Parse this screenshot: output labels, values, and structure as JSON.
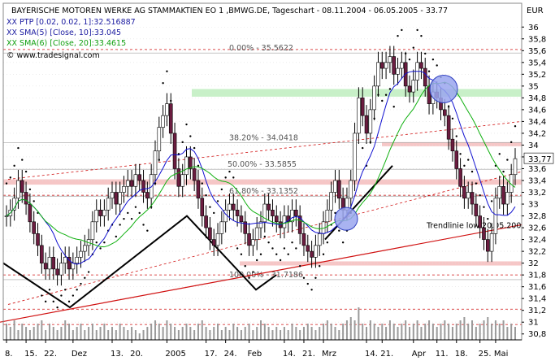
{
  "legend": {
    "title": "BAYERISCHE MOTOREN WERKE AG STAMMAKTIEN EO 1 ,BMWG.DE, Tageschart - 08.11.2004 - 06.05.2005 - 33.77",
    "ptp": "XX PTP [0.02, 0.02, 1]:32.516887",
    "sma5": "XX SMA(5) [Close, 10]:33.045",
    "sma6": "XX SMA(6) [Close, 20]:33.4615",
    "copyright": "© www.tradesignal.com"
  },
  "currency": "EUR",
  "colors": {
    "background": "#ffffff",
    "bull": "#ffffff",
    "bear": "#6b1d40",
    "sma5": "#1010d0",
    "sma6": "#10b010",
    "trend": "#d01010",
    "fib": "#a0a0a0",
    "zone_red": "#f6c6c6",
    "zone_green": "#c8f0c8",
    "volume": "#9a9a9a",
    "circle_fill": "#9aa6ee",
    "circle_stroke": "#3040c0"
  },
  "chart_data": {
    "type": "candlestick",
    "y_range": [
      30.7,
      36.1
    ],
    "y_ticks": [
      "30,8",
      "31",
      "31,2",
      "31,4",
      "31,6",
      "31,8",
      "32",
      "32,2",
      "32,4",
      "32,6",
      "32,8",
      "33",
      "33,2",
      "33,4",
      "33,6",
      "33,8",
      "34",
      "34,2",
      "34,4",
      "34,6",
      "34,8",
      "35",
      "35,2",
      "35,4",
      "35,6",
      "35,8",
      "36"
    ],
    "y_tick_values": [
      30.8,
      31.0,
      31.2,
      31.4,
      31.6,
      31.8,
      32.0,
      32.2,
      32.4,
      32.6,
      32.8,
      33.0,
      33.2,
      33.4,
      33.6,
      33.8,
      34.0,
      34.2,
      34.4,
      34.6,
      34.8,
      35.0,
      35.2,
      35.4,
      35.6,
      35.8,
      36.0
    ],
    "last_price_label": "33,77",
    "last_price": 33.77,
    "x_ticks": [
      {
        "label": "8.",
        "i": 0
      },
      {
        "label": "15.",
        "i": 5
      },
      {
        "label": "22.",
        "i": 10
      },
      {
        "label": "Dez",
        "i": 17
      },
      {
        "label": "13.",
        "i": 27
      },
      {
        "label": "20.",
        "i": 32
      },
      {
        "label": "2005",
        "i": 41
      },
      {
        "label": "17.",
        "i": 51
      },
      {
        "label": "24.",
        "i": 56
      },
      {
        "label": "Feb",
        "i": 62
      },
      {
        "label": "14.",
        "i": 71
      },
      {
        "label": "21.",
        "i": 76
      },
      {
        "label": "Mrz",
        "i": 81
      },
      {
        "label": "14.",
        "i": 92
      },
      {
        "label": "21.",
        "i": 96
      },
      {
        "label": "Apr",
        "i": 104
      },
      {
        "label": "11.",
        "i": 110
      },
      {
        "label": "18.",
        "i": 115
      },
      {
        "label": "25.",
        "i": 121
      },
      {
        "label": "Mai",
        "i": 125
      }
    ],
    "close": [
      32.8,
      32.9,
      33.1,
      33.4,
      33.2,
      33.0,
      32.7,
      32.5,
      32.3,
      32.0,
      31.9,
      32.1,
      31.9,
      31.8,
      32.0,
      32.1,
      31.9,
      32.0,
      32.1,
      32.2,
      32.3,
      32.4,
      32.7,
      32.9,
      32.8,
      32.9,
      33.1,
      33.2,
      33.0,
      33.2,
      33.3,
      33.4,
      33.3,
      33.5,
      33.4,
      33.2,
      33.1,
      33.5,
      33.9,
      34.3,
      34.5,
      34.7,
      34.2,
      33.6,
      33.3,
      33.5,
      33.8,
      33.6,
      33.4,
      33.1,
      32.8,
      32.6,
      32.4,
      32.3,
      32.5,
      32.7,
      32.9,
      33.0,
      32.9,
      32.8,
      32.7,
      32.5,
      32.3,
      32.4,
      32.6,
      32.7,
      33.0,
      32.9,
      32.8,
      32.7,
      32.6,
      32.8,
      32.7,
      32.9,
      32.8,
      32.5,
      32.3,
      32.2,
      32.1,
      32.3,
      32.5,
      32.7,
      32.9,
      33.2,
      33.4,
      33.1,
      32.9,
      33.1,
      33.4,
      34.2,
      34.8,
      34.5,
      34.2,
      34.6,
      35.0,
      35.4,
      35.3,
      35.4,
      35.5,
      35.2,
      35.3,
      35.4,
      35.0,
      34.9,
      35.1,
      35.4,
      35.3,
      35.0,
      34.7,
      34.9,
      34.8,
      34.6,
      34.5,
      34.1,
      33.9,
      33.6,
      33.3,
      33.1,
      33.2,
      33.0,
      32.8,
      32.6,
      32.4,
      32.2,
      32.5,
      33.1,
      33.3,
      33.0,
      33.2,
      33.5,
      33.77
    ],
    "volume": [
      0.5,
      0.4,
      0.6,
      0.3,
      0.5,
      0.4,
      0.3,
      0.4,
      0.5,
      0.6,
      0.3,
      0.5,
      0.4,
      0.3,
      0.4,
      0.6,
      0.5,
      0.3,
      0.4,
      0.5,
      0.3,
      0.4,
      0.5,
      0.3,
      0.4,
      0.5,
      0.3,
      0.4,
      0.3,
      0.5,
      0.4,
      0.3,
      0.4,
      0.3,
      0.2,
      0.3,
      0.4,
      0.5,
      0.6,
      0.5,
      0.4,
      0.6,
      0.5,
      0.4,
      0.3,
      0.4,
      0.5,
      0.4,
      0.3,
      0.5,
      0.6,
      0.4,
      0.3,
      0.4,
      0.5,
      0.3,
      0.4,
      0.3,
      0.5,
      0.4,
      0.3,
      0.4,
      0.5,
      0.3,
      0.4,
      0.6,
      0.5,
      0.4,
      0.3,
      0.4,
      0.3,
      0.4,
      0.3,
      0.5,
      0.4,
      0.3,
      0.4,
      0.5,
      0.4,
      0.3,
      0.4,
      0.5,
      0.6,
      0.5,
      0.4,
      0.3,
      0.5,
      0.6,
      0.7,
      0.6,
      1.0,
      0.5,
      0.4,
      0.6,
      0.5,
      0.4,
      0.5,
      0.4,
      0.6,
      0.5,
      0.4,
      0.5,
      0.6,
      0.4,
      0.5,
      0.6,
      0.4,
      0.5,
      0.6,
      0.5,
      0.4,
      0.5,
      0.6,
      0.5,
      0.4,
      0.5,
      0.6,
      0.7,
      0.5,
      0.6,
      0.4,
      0.5,
      0.6,
      0.7,
      0.5,
      0.6,
      0.5,
      0.6,
      0.4,
      0.5,
      0.4
    ],
    "fib_levels": [
      {
        "label": "0.00% - 35.5622",
        "value": 35.56
      },
      {
        "label": "38.20% - 34.0418",
        "value": 34.04
      },
      {
        "label": "50.00% - 33.5855",
        "value": 33.59
      },
      {
        "label": "61.80% - 33.1352",
        "value": 33.135
      },
      {
        "label": "100.00% - 31.7186",
        "value": 31.72
      }
    ],
    "annotations": [
      {
        "text": "Trendlinie low 20.05.200"
      }
    ]
  }
}
